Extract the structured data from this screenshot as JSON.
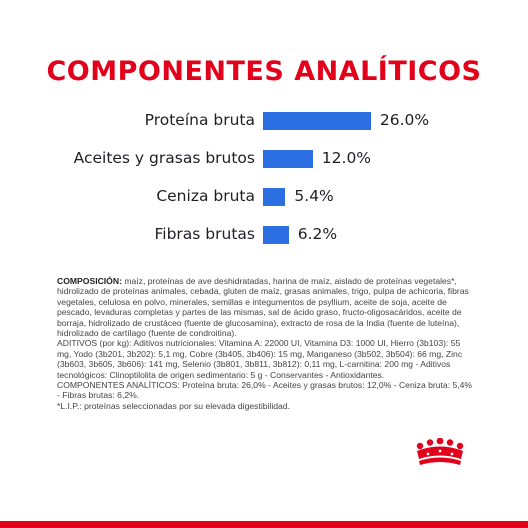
{
  "title": "COMPONENTES ANALÍTICOS",
  "chart_data": {
    "type": "bar",
    "orientation": "horizontal",
    "title": "COMPONENTES ANALÍTICOS",
    "categories": [
      "Proteína bruta",
      "Aceites y grasas brutos",
      "Ceniza bruta",
      "Fibras brutas"
    ],
    "values": [
      26.0,
      12.0,
      5.4,
      6.2
    ],
    "value_labels": [
      "26.0%",
      "12.0%",
      "5.4%",
      "6.2%"
    ],
    "unit": "%",
    "grid": false,
    "legend": "none",
    "bar_color": "#2b6fe3"
  },
  "composition": {
    "heading": "COMPOSICIÓN:",
    "text": "maíz, proteínas de ave deshidratadas, harina de maíz, aislado de proteínas vegetales*, hidrolizado de proteínas animales, cebada, gluten de maíz, grasas animales, trigo, pulpa de achicoria, fibras vegetales, celulosa en polvo, minerales, semillas e integumentos de psyllium, aceite de soja, aceite de pescado, levaduras completas y partes de las mismas, sal de ácido graso, fructo-oligosacáridos, aceite de borraja, hidrolizado de crustáceo (fuente de glucosamina), extracto de rosa de la India (fuente de luteína), hidrolizado de cartílago (fuente de condroitina).",
    "additives": "ADITIVOS (por kg): Aditivos nutricionales: Vitamina A: 22000 UI, Vitamina D3: 1000 UI, Hierro (3b103): 55 mg, Yodo (3b201, 3b202): 5,1 mg, Cobre (3b405, 3b406): 15 mg, Manganeso (3b502, 3b504): 66 mg, Zinc (3b603, 3b605, 3b606): 141 mg, Selenio (3b801, 3b811, 3b812): 0,11 mg, L-carnitina: 200 mg - Aditivos tecnológicos: Clinoptilolita de origen sedimentario: 5 g - Conservantes - Antioxidantes.",
    "analytical": "COMPONENTES ANALÍTICOS: Proteína bruta: 26,0% - Aceites y grasas brutos: 12,0% - Ceniza bruta: 5,4% - Fibras brutas: 6,2%.",
    "footnote": "*L.I.P.: proteínas seleccionadas por su elevada digestibilidad."
  },
  "colors": {
    "brand_red": "#e2001a",
    "bar_blue": "#2b6fe3",
    "text": "#1f1f26"
  },
  "logo": "royal-canin-crown-logo"
}
